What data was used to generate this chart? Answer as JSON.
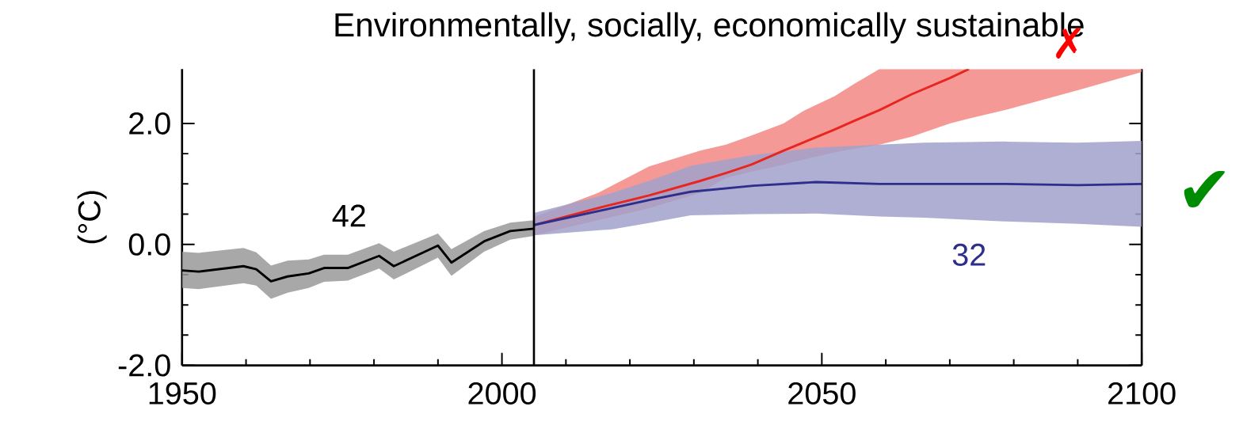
{
  "chart_data": {
    "type": "line",
    "title": "Environmentally, socially, economically sustainable",
    "ylabel": "(°C)",
    "xlim": [
      1950,
      2100
    ],
    "ylim": [
      -2.0,
      2.9
    ],
    "xticks": [
      1950,
      2000,
      2050,
      2100
    ],
    "yticks": [
      {
        "value": -2.0,
        "label": "-2.0"
      },
      {
        "value": 0.0,
        "label": "0.0"
      },
      {
        "value": 2.0,
        "label": "2.0"
      }
    ],
    "marker": "none",
    "line_style": "solid",
    "ref_lines": [
      {
        "axis": "x",
        "value": 2005,
        "color": "#000000"
      }
    ],
    "annotations": [
      "42",
      "32",
      "✗",
      "✔"
    ],
    "series": [
      {
        "color": "#000000",
        "x": [
          1950,
          1952.6,
          1959.6,
          1961.6,
          1963.9,
          1966.5,
          1969.8,
          1972.2,
          1975.9,
          1980.8,
          1983.1,
          1990.0,
          1992.1,
          1997.2,
          2001.3,
          2005.0
        ],
        "values": [
          -0.43,
          -0.45,
          -0.36,
          -0.41,
          -0.61,
          -0.53,
          -0.48,
          -0.39,
          -0.39,
          -0.19,
          -0.36,
          -0.02,
          -0.3,
          0.05,
          0.22,
          0.26
        ],
        "lower": [
          -0.72,
          -0.74,
          -0.64,
          -0.68,
          -0.9,
          -0.8,
          -0.72,
          -0.62,
          -0.6,
          -0.4,
          -0.58,
          -0.22,
          -0.52,
          -0.12,
          0.08,
          0.14
        ],
        "upper": [
          -0.12,
          -0.14,
          -0.06,
          -0.13,
          -0.35,
          -0.27,
          -0.25,
          -0.17,
          -0.17,
          0.02,
          -0.12,
          0.18,
          -0.08,
          0.22,
          0.36,
          0.4
        ]
      },
      {
        "color": "#e8251f",
        "x": [
          2005,
          2015,
          2023,
          2031,
          2035,
          2039,
          2044,
          2047,
          2052,
          2055,
          2059,
          2064,
          2070,
          2073,
          2079,
          2090,
          2100
        ],
        "values": [
          0.32,
          0.6,
          0.81,
          1.05,
          1.18,
          1.32,
          1.55,
          1.68,
          1.9,
          2.04,
          2.22,
          2.48,
          2.75,
          2.9,
          null,
          null,
          null
        ],
        "lower": [
          0.15,
          0.4,
          0.6,
          0.85,
          1.1,
          1.2,
          1.32,
          1.4,
          1.52,
          1.58,
          1.65,
          1.78,
          2.0,
          2.08,
          2.23,
          2.55,
          2.85
        ],
        "upper": [
          0.45,
          0.85,
          1.29,
          1.55,
          1.65,
          1.8,
          2.0,
          2.2,
          2.45,
          2.65,
          2.9,
          2.9,
          2.9,
          2.9,
          2.9,
          2.9,
          2.9
        ]
      },
      {
        "color": "#2e2e8c",
        "x": [
          2005,
          2017.2,
          2023.3,
          2029.5,
          2039.3,
          2049.1,
          2059,
          2066,
          2078.5,
          2090,
          2100
        ],
        "values": [
          0.32,
          0.6,
          0.74,
          0.87,
          0.97,
          1.03,
          1.0,
          1.0,
          1.0,
          0.98,
          1.0
        ],
        "lower": [
          0.15,
          0.25,
          0.36,
          0.48,
          0.5,
          0.51,
          0.46,
          0.44,
          0.38,
          0.34,
          0.29
        ],
        "upper": [
          0.52,
          0.85,
          1.06,
          1.3,
          1.48,
          1.6,
          1.65,
          1.68,
          1.7,
          1.68,
          1.71
        ]
      }
    ]
  }
}
